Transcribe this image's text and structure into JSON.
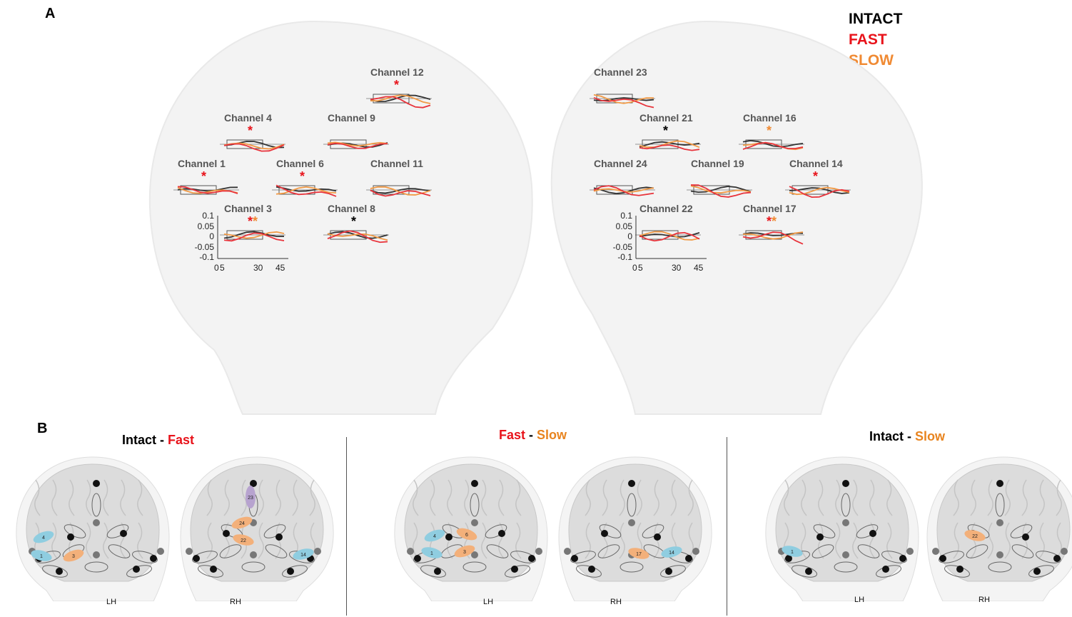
{
  "panels": {
    "a": "A",
    "b": "B"
  },
  "legend": [
    {
      "label": "INTACT",
      "color": "#000000"
    },
    {
      "label": "FAST",
      "color": "#e8131b"
    },
    {
      "label": "SLOW",
      "color": "#f08a33"
    }
  ],
  "colors": {
    "intact": "#333333",
    "fast": "#e8333b",
    "slow": "#f29a45",
    "window": "#555555"
  },
  "panelA": {
    "x_ticks": [
      "0",
      "5",
      "30",
      "45"
    ],
    "y_ticks": [
      "0.1",
      "0.05",
      "0",
      "-0.05",
      "-0.1"
    ],
    "left": [
      {
        "label": "Channel 12",
        "stars": [
          {
            "c": "fast",
            "t": "*"
          }
        ]
      },
      {
        "label": "Channel 4",
        "stars": [
          {
            "c": "fast",
            "t": "*"
          }
        ]
      },
      {
        "label": "Channel 9",
        "stars": []
      },
      {
        "label": "Channel 1",
        "stars": [
          {
            "c": "fast",
            "t": "*"
          }
        ]
      },
      {
        "label": "Channel 6",
        "stars": [
          {
            "c": "fast",
            "t": "*"
          }
        ]
      },
      {
        "label": "Channel 11",
        "stars": []
      },
      {
        "label": "Channel 3",
        "stars": [
          {
            "c": "fast",
            "t": "*"
          },
          {
            "c": "slow",
            "t": "*"
          }
        ]
      },
      {
        "label": "Channel 8",
        "stars": [
          {
            "c": "intact",
            "t": "*"
          }
        ]
      }
    ],
    "right": [
      {
        "label": "Channel 23",
        "stars": []
      },
      {
        "label": "Channel 21",
        "stars": [
          {
            "c": "intact",
            "t": "*"
          }
        ]
      },
      {
        "label": "Channel 16",
        "stars": [
          {
            "c": "slow",
            "t": "*"
          }
        ]
      },
      {
        "label": "Channel 24",
        "stars": []
      },
      {
        "label": "Channel 19",
        "stars": []
      },
      {
        "label": "Channel 14",
        "stars": [
          {
            "c": "fast",
            "t": "*"
          }
        ]
      },
      {
        "label": "Channel 22",
        "stars": []
      },
      {
        "label": "Channel 17",
        "stars": [
          {
            "c": "fast",
            "t": "*"
          },
          {
            "c": "slow",
            "t": "*"
          }
        ]
      }
    ]
  },
  "panelB": {
    "comparisons": [
      {
        "a": "Intact",
        "a_color": "#000000",
        "b": "Fast",
        "b_color": "#e8131b",
        "sep": " - "
      },
      {
        "a": "Fast",
        "a_color": "#e8131b",
        "b": "Slow",
        "b_color": "#e8841f",
        "sep": " - "
      },
      {
        "a": "Intact",
        "a_color": "#000000",
        "b": "Slow",
        "b_color": "#e8841f",
        "sep": " - "
      }
    ],
    "hemispheres": {
      "lh": "LH",
      "rh": "RH"
    },
    "channel_labels": {
      "c1_lh": [
        "4",
        "1",
        "3"
      ],
      "c1_rh": [
        "23",
        "24",
        "22",
        "14"
      ],
      "c2_lh": [
        "4",
        "6",
        "1",
        "3"
      ],
      "c2_rh": [
        "17",
        "14"
      ],
      "c3_lh": [
        "1"
      ],
      "c3_rh": [
        "22"
      ]
    },
    "channel_colors": {
      "blue": "#8fcde0",
      "orange": "#f3b07a",
      "purple": "#b7a3cf"
    }
  }
}
